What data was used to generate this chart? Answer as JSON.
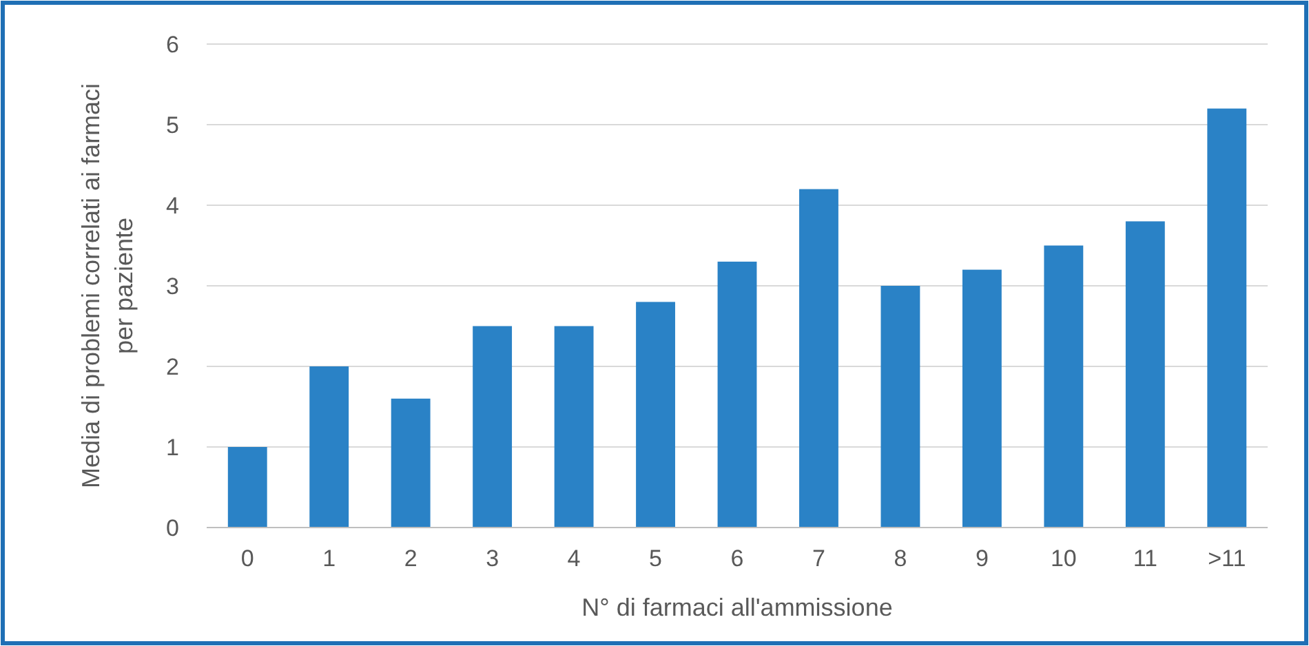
{
  "chart_data": {
    "type": "bar",
    "xlabel": "N° di farmaci all'ammissione",
    "ylabel": "Media di problemi correlati ai farmaci per paziente",
    "categories": [
      "0",
      "1",
      "2",
      "3",
      "4",
      "5",
      "6",
      "7",
      "8",
      "9",
      "10",
      "11",
      ">11"
    ],
    "values": [
      1,
      2,
      1.6,
      2.5,
      2.5,
      2.8,
      3.3,
      4.2,
      3.0,
      3.2,
      3.5,
      3.8,
      5.2
    ],
    "color": "#2a82c6",
    "ylim": [
      0,
      6
    ],
    "yticks": [
      0,
      1,
      2,
      3,
      4,
      5,
      6
    ],
    "grid": "y"
  }
}
